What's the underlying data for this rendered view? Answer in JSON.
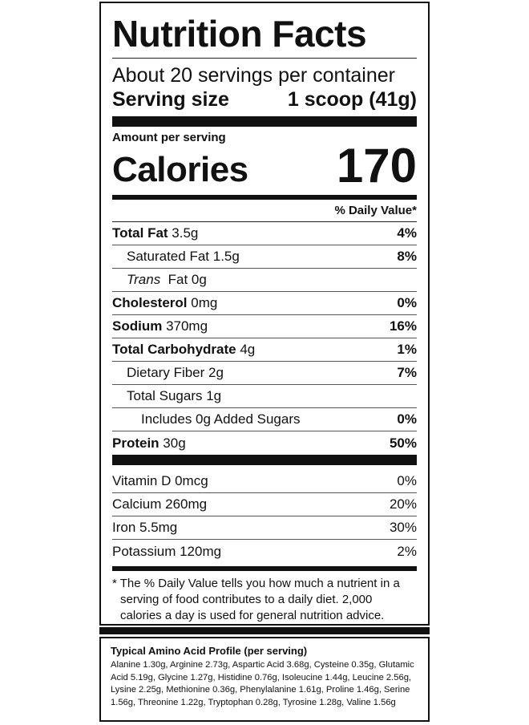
{
  "title": "Nutrition Facts",
  "servings_per_container": "About 20 servings per container",
  "serving_size": {
    "label": "Serving size",
    "value": "1 scoop (41g)"
  },
  "amount_per_serving": "Amount per serving",
  "calories": {
    "label": "Calories",
    "value": "170"
  },
  "daily_value_header": "% Daily Value*",
  "nutrients": [
    {
      "name": "Total Fat",
      "amount": " 3.5g",
      "dv": "4%",
      "bold": true,
      "indent": 0
    },
    {
      "name": "Saturated Fat",
      "amount": " 1.5g",
      "dv": "8%",
      "bold": false,
      "indent": 1
    },
    {
      "name": "Trans",
      "amount": "  Fat 0g",
      "dv": "",
      "bold": false,
      "indent": 1
    },
    {
      "name": "Cholesterol",
      "amount": " 0mg",
      "dv": "0%",
      "bold": true,
      "indent": 0
    },
    {
      "name": "Sodium",
      "amount": " 370mg",
      "dv": "16%",
      "bold": true,
      "indent": 0
    },
    {
      "name": "Total Carbohydrate",
      "amount": " 4g",
      "dv": "1%",
      "bold": true,
      "indent": 0
    },
    {
      "name": "Dietary Fiber",
      "amount": " 2g",
      "dv": "7%",
      "bold": false,
      "indent": 1
    },
    {
      "name": "Total Sugars",
      "amount": " 1g",
      "dv": "",
      "bold": false,
      "indent": 1
    },
    {
      "name": "Includes 0g Added Sugars",
      "amount": "",
      "dv": "0%",
      "bold": false,
      "indent": 2
    },
    {
      "name": "Protein",
      "amount": " 30g",
      "dv": "50%",
      "bold": true,
      "indent": 0
    }
  ],
  "vitamins": [
    {
      "name": "Vitamin D 0mcg",
      "dv": "0%"
    },
    {
      "name": "Calcium 260mg",
      "dv": "20%"
    },
    {
      "name": "Iron 5.5mg",
      "dv": "30%"
    },
    {
      "name": "Potassium 120mg",
      "dv": "2%"
    }
  ],
  "footnote": "* The % Daily Value tells you how much a nutrient in a serving of food contributes to a daily diet. 2,000 calories a day is used for general nutrition advice.",
  "amino_profile": {
    "title": "Typical Amino Acid Profile (per serving)",
    "text": "Alanine 1.30g, Arginine 2.73g, Aspartic Acid 3.68g, Cysteine 0.35g, Glutamic Acid 5.19g, Glycine 1.27g, Histidine 0.76g, Isoleucine 1.44g, Leucine 2.56g, Lysine 2.25g, Methionine 0.36g, Phenylalanine 1.61g, Proline 1.46g, Serine 1.56g, Threonine 1.22g, Tryptophan 0.28g, Tyrosine 1.28g, Valine 1.56g"
  }
}
